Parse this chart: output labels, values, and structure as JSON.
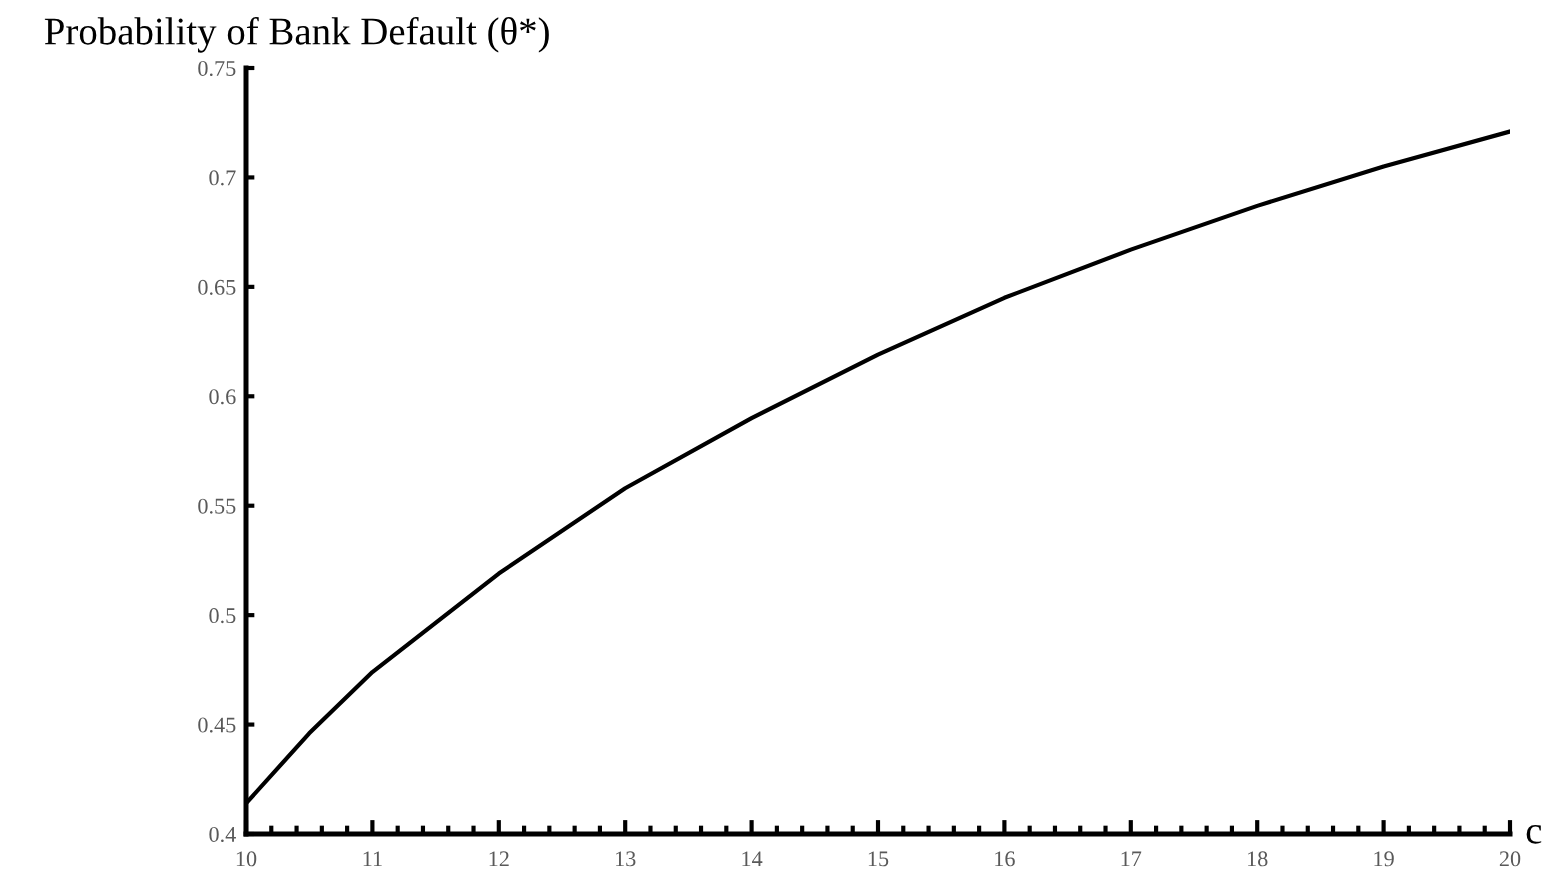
{
  "chart_data": {
    "type": "line",
    "ylabel": "Probability of Bank Default (θ*)",
    "xlabel": "c",
    "x": [
      10,
      10.5,
      11,
      12,
      13,
      14,
      15,
      16,
      17,
      18,
      19,
      20
    ],
    "series": [
      {
        "color": "#000000",
        "values": [
          0.414,
          0.446,
          0.474,
          0.519,
          0.558,
          0.59,
          0.619,
          0.645,
          0.667,
          0.687,
          0.705,
          0.721
        ]
      }
    ],
    "xlim": [
      10,
      20
    ],
    "ylim": [
      0.4,
      0.75
    ],
    "xticks": [
      10,
      11,
      12,
      13,
      14,
      15,
      16,
      17,
      18,
      19,
      20
    ],
    "yticks": [
      0.4,
      0.45,
      0.5,
      0.55,
      0.6,
      0.65,
      0.7,
      0.75
    ],
    "grid": false,
    "legend": false,
    "marker": "none",
    "line_style": "solid"
  }
}
